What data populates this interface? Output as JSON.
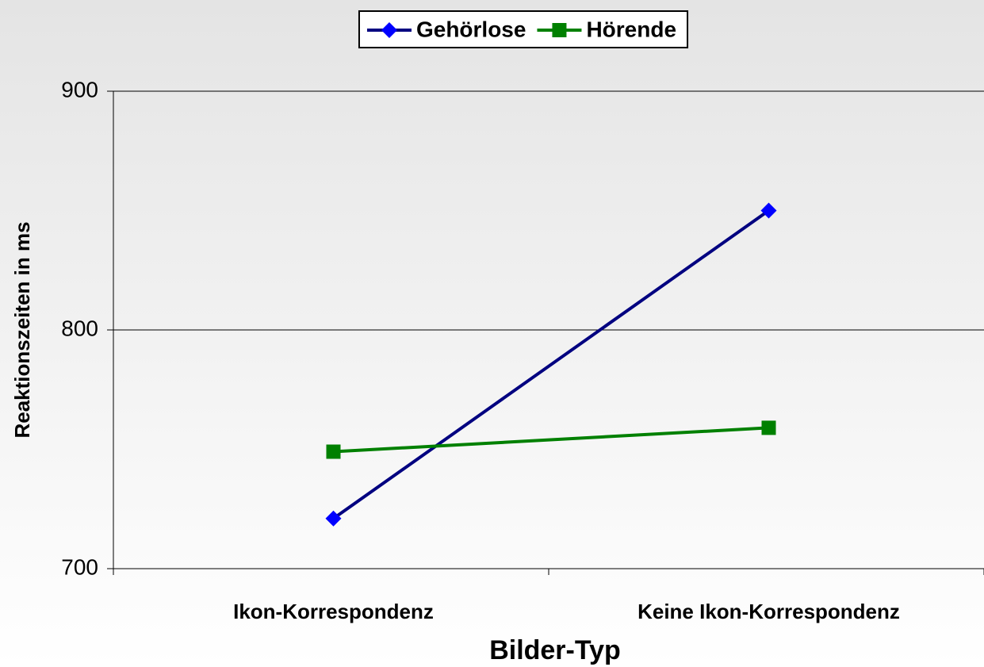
{
  "chart_data": {
    "type": "line",
    "x_label": "Bilder-Typ",
    "y_label": "Reaktionszeiten in ms",
    "categories": [
      "Ikon-Korrespondenz",
      "Keine Ikon-Korrespondenz"
    ],
    "series": [
      {
        "name": "Gehörlose",
        "color": "#000080",
        "marker_color": "#0000ff",
        "marker": "diamond",
        "values": [
          721,
          850
        ]
      },
      {
        "name": "Hörende",
        "color": "#008000",
        "marker_color": "#008000",
        "marker": "square",
        "values": [
          749,
          759
        ]
      }
    ],
    "ylim": [
      700,
      900
    ],
    "yticks": [
      700,
      800,
      900
    ],
    "grid": true,
    "legend": "top"
  }
}
